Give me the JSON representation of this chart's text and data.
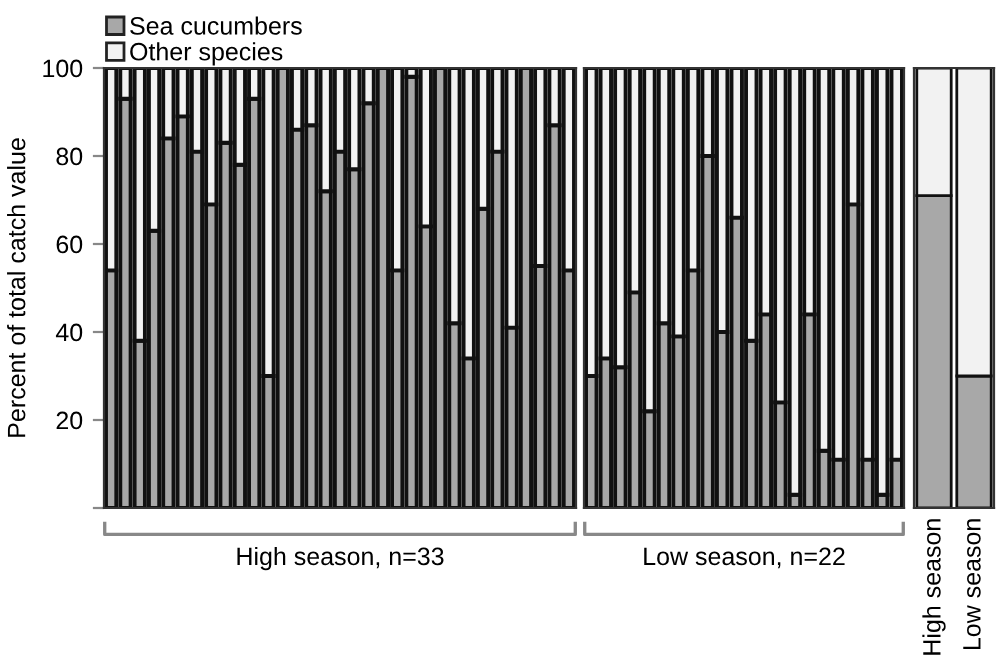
{
  "chart_data": [
    {
      "type": "bar",
      "stacked": true,
      "ylabel": "Percent of total catch value",
      "xlabel": "High season, n=33",
      "legend": "top left",
      "grid": false,
      "ylim": [
        0,
        100
      ],
      "yticks": [
        {
          "value": 0,
          "label": null
        },
        20,
        40,
        60,
        80,
        100
      ],
      "tick_labels": "y",
      "categories": [
        null,
        null,
        null,
        null,
        null,
        null,
        null,
        null,
        null,
        null,
        null,
        null,
        null,
        null,
        null,
        null,
        null,
        null,
        null,
        null,
        null,
        null,
        null,
        null,
        null,
        null,
        null,
        null,
        null,
        null,
        null,
        null,
        null
      ],
      "series": [
        {
          "name": "Sea cucumbers",
          "color": "#a8a8a8",
          "values": [
            54,
            93,
            38,
            63,
            84,
            89,
            81,
            69,
            83,
            78,
            93,
            30,
            100,
            86,
            87,
            72,
            81,
            77,
            92,
            100,
            54,
            98,
            64,
            100,
            42,
            34,
            68,
            81,
            41,
            100,
            55,
            87,
            54
          ]
        },
        {
          "name": "Other species",
          "color": "#f2f2f2",
          "values": [
            46,
            7,
            62,
            37,
            16,
            11,
            19,
            31,
            17,
            22,
            7,
            70,
            null,
            14,
            13,
            28,
            19,
            23,
            8,
            null,
            46,
            2,
            36,
            null,
            58,
            66,
            32,
            19,
            59,
            null,
            45,
            13,
            46
          ]
        }
      ]
    },
    {
      "type": "bar",
      "stacked": true,
      "xlabel": "Low season, n=22",
      "ylim": [
        0,
        100
      ],
      "tick_labels": false,
      "categories": [
        null,
        null,
        null,
        null,
        null,
        null,
        null,
        null,
        null,
        null,
        null,
        null,
        null,
        null,
        null,
        null,
        null,
        null,
        null,
        null,
        null,
        null
      ],
      "series": [
        {
          "color": "#a8a8a8",
          "values": [
            30,
            34,
            32,
            49,
            22,
            42,
            39,
            54,
            80,
            40,
            66,
            38,
            44,
            24,
            3,
            44,
            13,
            11,
            69,
            11,
            3,
            11
          ]
        },
        {
          "color": "#f2f2f2",
          "values": [
            70,
            66,
            68,
            51,
            78,
            58,
            61,
            46,
            20,
            60,
            34,
            62,
            56,
            76,
            97,
            56,
            87,
            89,
            31,
            89,
            97,
            89
          ]
        }
      ]
    },
    {
      "type": "bar",
      "stacked": true,
      "ylim": [
        0,
        100
      ],
      "tick_labels": "x",
      "categories": [
        "High season",
        "Low season"
      ],
      "series": [
        {
          "color": "#a8a8a8",
          "values": [
            71,
            30
          ]
        },
        {
          "color": "#f2f2f2",
          "values": [
            29,
            70
          ]
        }
      ]
    }
  ]
}
